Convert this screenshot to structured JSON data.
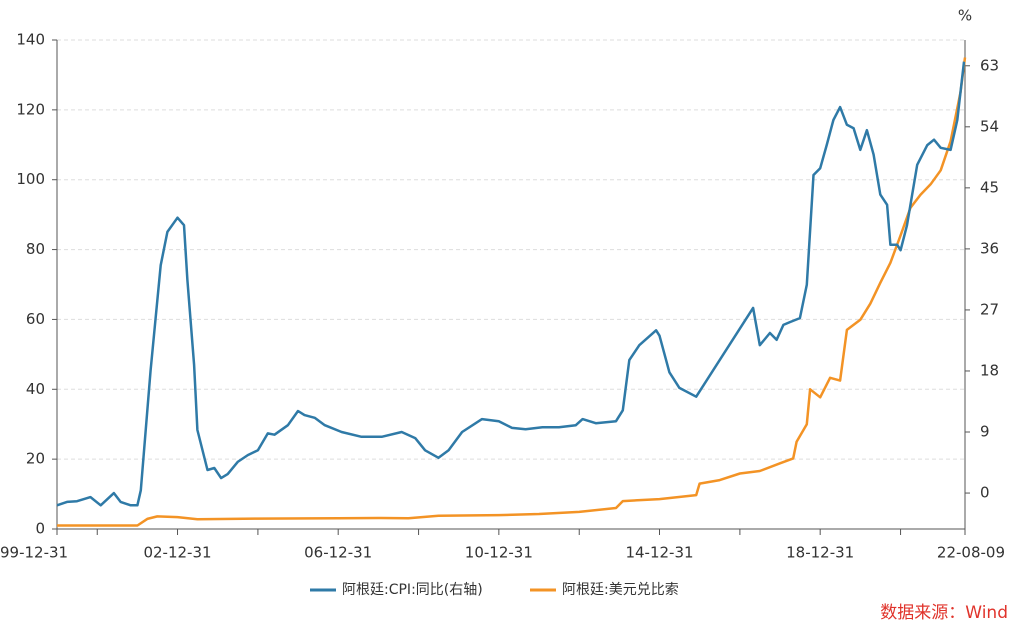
{
  "chart_data": {
    "type": "line",
    "y2label": "%",
    "source": "数据来源：Wind",
    "xlim": [
      "99-12-31",
      "22-08-09"
    ],
    "xticks": [
      "99-12-31",
      "02-12-31",
      "06-12-31",
      "10-12-31",
      "14-12-31",
      "18-12-31",
      "22-08-09"
    ],
    "x_minor_ticks": [
      "00-12-31",
      "04-12-31",
      "08-12-31",
      "12-12-31",
      "16-12-31",
      "20-12-31"
    ],
    "ylim": [
      0,
      140
    ],
    "yticks": [
      0,
      20,
      40,
      60,
      80,
      100,
      120,
      140
    ],
    "y2lim": [
      -5.3,
      66.8
    ],
    "y2ticks": [
      0,
      9,
      18,
      27,
      36,
      45,
      54,
      63
    ],
    "grid": true,
    "series": [
      {
        "name": "阿根廷:CPI:同比(右轴)",
        "color": "#2f7aa7",
        "axis": "y2",
        "x": [
          "99-12-31",
          "00-03-31",
          "00-06-30",
          "00-10-31",
          "01-01-31",
          "01-05-31",
          "01-07-31",
          "01-10-31",
          "01-12-31",
          "02-01-31",
          "02-04-30",
          "02-07-31",
          "02-09-30",
          "02-12-31",
          "03-02-28",
          "03-03-31",
          "03-05-31",
          "03-06-30",
          "03-09-30",
          "03-11-30",
          "04-01-31",
          "04-03-31",
          "04-06-30",
          "04-09-30",
          "04-12-31",
          "05-03-31",
          "05-05-31",
          "05-09-30",
          "05-12-31",
          "06-02-28",
          "06-05-31",
          "06-08-31",
          "07-01-31",
          "07-07-31",
          "08-01-31",
          "08-07-31",
          "08-11-30",
          "09-02-28",
          "09-06-30",
          "09-09-30",
          "10-01-31",
          "10-07-31",
          "10-12-31",
          "11-04-30",
          "11-08-31",
          "12-01-31",
          "12-06-30",
          "12-11-30",
          "13-01-31",
          "13-05-31",
          "13-11-30",
          "14-01-31",
          "14-03-31",
          "14-06-30",
          "14-11-30",
          "14-12-31",
          "15-03-31",
          "15-06-30",
          "15-11-30",
          "17-04-30",
          "17-06-30",
          "17-09-30",
          "17-11-30",
          "18-01-31",
          "18-03-31",
          "18-06-30",
          "18-08-31",
          "18-10-31",
          "18-12-31",
          "19-02-28",
          "19-04-30",
          "19-06-30",
          "19-08-31",
          "19-10-31",
          "19-12-31",
          "20-02-29",
          "20-04-30",
          "20-06-30",
          "20-08-31",
          "20-09-30",
          "20-11-30",
          "20-12-31",
          "21-02-28",
          "21-05-31",
          "21-08-31",
          "21-10-31",
          "21-12-31",
          "22-03-31",
          "22-05-31",
          "22-07-31"
        ],
        "values": [
          -1.8,
          -1.3,
          -1.2,
          -0.6,
          -1.8,
          0,
          -1.3,
          -1.8,
          -1.8,
          0.4,
          18.1,
          33.6,
          38.5,
          40.6,
          39.5,
          31.4,
          18.9,
          9.3,
          3.4,
          3.7,
          2.2,
          2.8,
          4.6,
          5.6,
          6.3,
          8.8,
          8.6,
          10.0,
          12.1,
          11.5,
          11.1,
          10.0,
          9.0,
          8.3,
          8.3,
          9.0,
          8.1,
          6.3,
          5.2,
          6.3,
          9.0,
          10.9,
          10.6,
          9.6,
          9.4,
          9.7,
          9.7,
          10.0,
          10.9,
          10.3,
          10.6,
          12.2,
          19.6,
          21.8,
          24.0,
          23.2,
          17.8,
          15.5,
          14.2,
          27.3,
          21.8,
          23.6,
          22.6,
          24.8,
          25.2,
          25.8,
          30.7,
          46.9,
          47.9,
          51.3,
          55.0,
          56.9,
          54.3,
          53.8,
          50.6,
          53.5,
          49.9,
          44.0,
          42.5,
          36.6,
          36.6,
          35.8,
          39.5,
          48.4,
          51.3,
          52.1,
          50.9,
          50.6,
          55.0,
          63.6
        ]
      },
      {
        "name": "阿根廷:美元兑比索",
        "color": "#f39325",
        "axis": "y",
        "x": [
          "99-12-31",
          "01-12-31",
          "02-03-31",
          "02-06-30",
          "02-12-31",
          "03-06-30",
          "04-12-31",
          "06-12-31",
          "07-12-31",
          "08-09-30",
          "09-06-30",
          "10-12-31",
          "11-12-31",
          "12-12-31",
          "13-11-30",
          "14-01-31",
          "14-12-31",
          "15-11-30",
          "15-12-31",
          "16-06-30",
          "16-12-31",
          "17-06-30",
          "17-12-31",
          "18-04-30",
          "18-05-31",
          "18-08-31",
          "18-09-30",
          "18-12-31",
          "19-03-31",
          "19-06-30",
          "19-08-31",
          "19-12-31",
          "20-03-31",
          "20-06-30",
          "20-09-30",
          "20-12-31",
          "21-03-31",
          "21-06-30",
          "21-09-30",
          "21-12-31",
          "22-03-31",
          "22-06-30",
          "22-08-09"
        ],
        "values": [
          1.0,
          1.0,
          2.9,
          3.6,
          3.4,
          2.8,
          2.97,
          3.06,
          3.15,
          3.1,
          3.8,
          3.98,
          4.3,
          4.9,
          6.0,
          8.0,
          8.55,
          9.7,
          13.0,
          14.0,
          15.9,
          16.6,
          18.8,
          20.2,
          25.0,
          30.0,
          40.0,
          37.7,
          43.3,
          42.5,
          57.0,
          59.9,
          64.5,
          70.5,
          76.2,
          84.1,
          92.0,
          95.7,
          98.7,
          102.7,
          111.0,
          125.2,
          135.0
        ]
      }
    ]
  }
}
